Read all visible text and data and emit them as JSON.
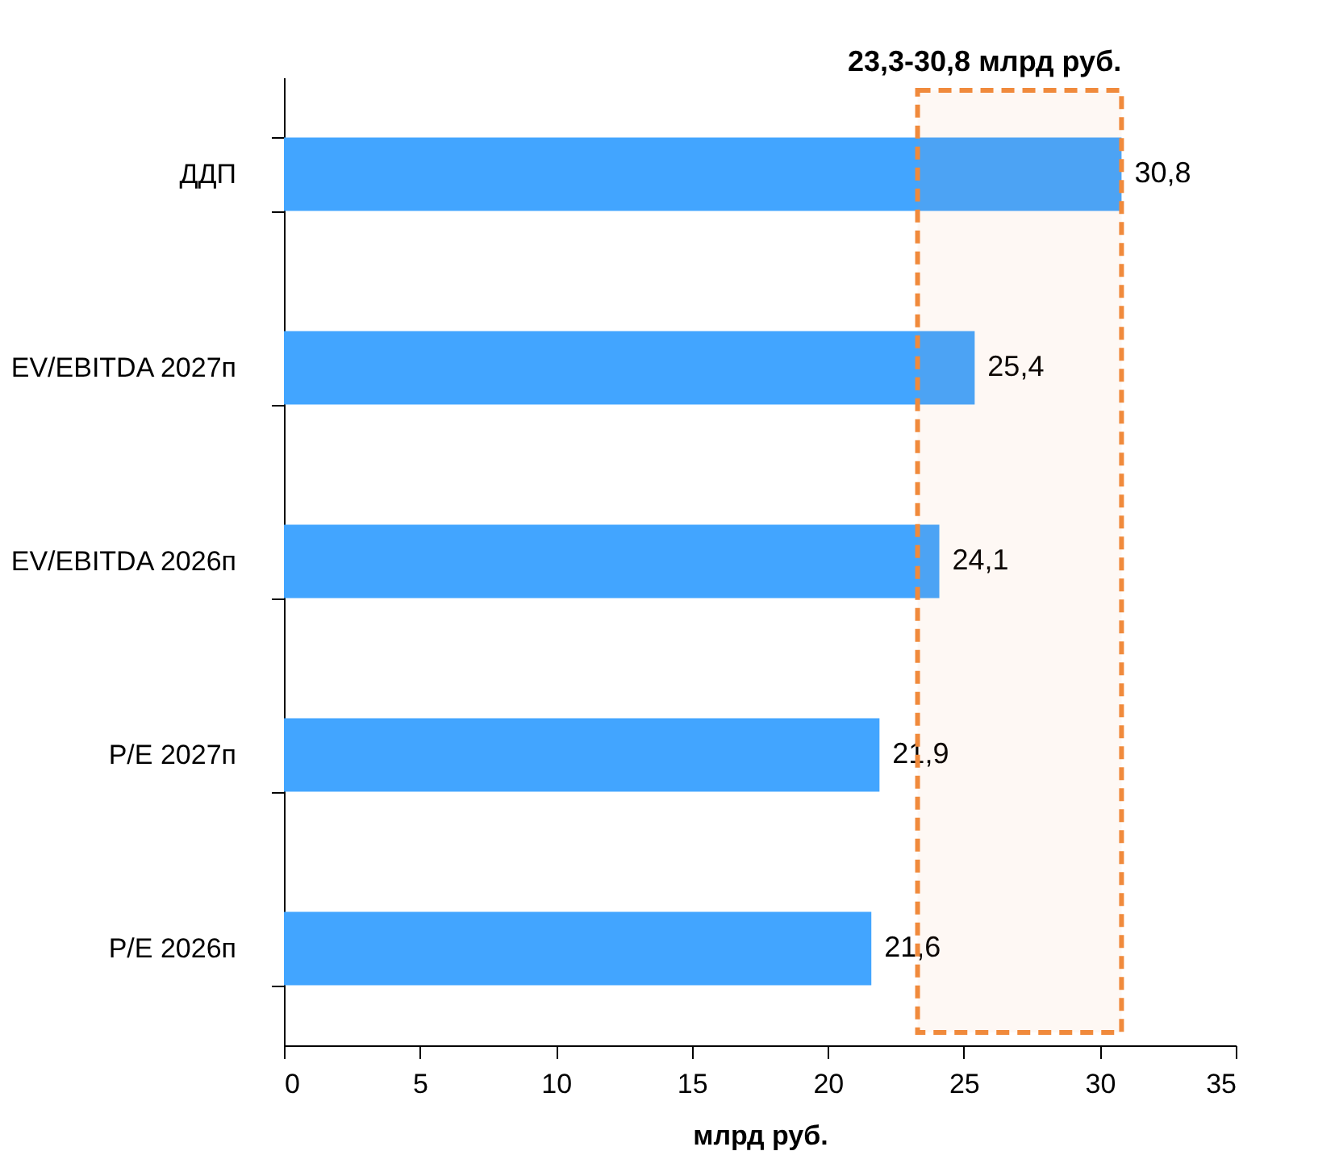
{
  "chart_data": {
    "type": "bar",
    "orientation": "horizontal",
    "xlabel": "млрд руб.",
    "categories": [
      "ДДП",
      "EV/EBITDA 2027п",
      "EV/EBITDA 2026п",
      "P/E 2027п",
      "P/E 2026п"
    ],
    "values": [
      30.8,
      25.4,
      24.1,
      21.9,
      21.6
    ],
    "value_labels": [
      "30,8",
      "25,4",
      "24,1",
      "21,9",
      "21,6"
    ],
    "color": "#42a5ff",
    "xlim": [
      0,
      35
    ],
    "xticks": [
      0,
      5,
      10,
      15,
      20,
      25,
      30,
      35
    ],
    "bands": [
      {
        "axis": "x",
        "from": 23.3,
        "to": 30.8,
        "label": "23,3-30,8 млрд руб.",
        "color": "#f08a3c"
      }
    ],
    "grid": false
  }
}
